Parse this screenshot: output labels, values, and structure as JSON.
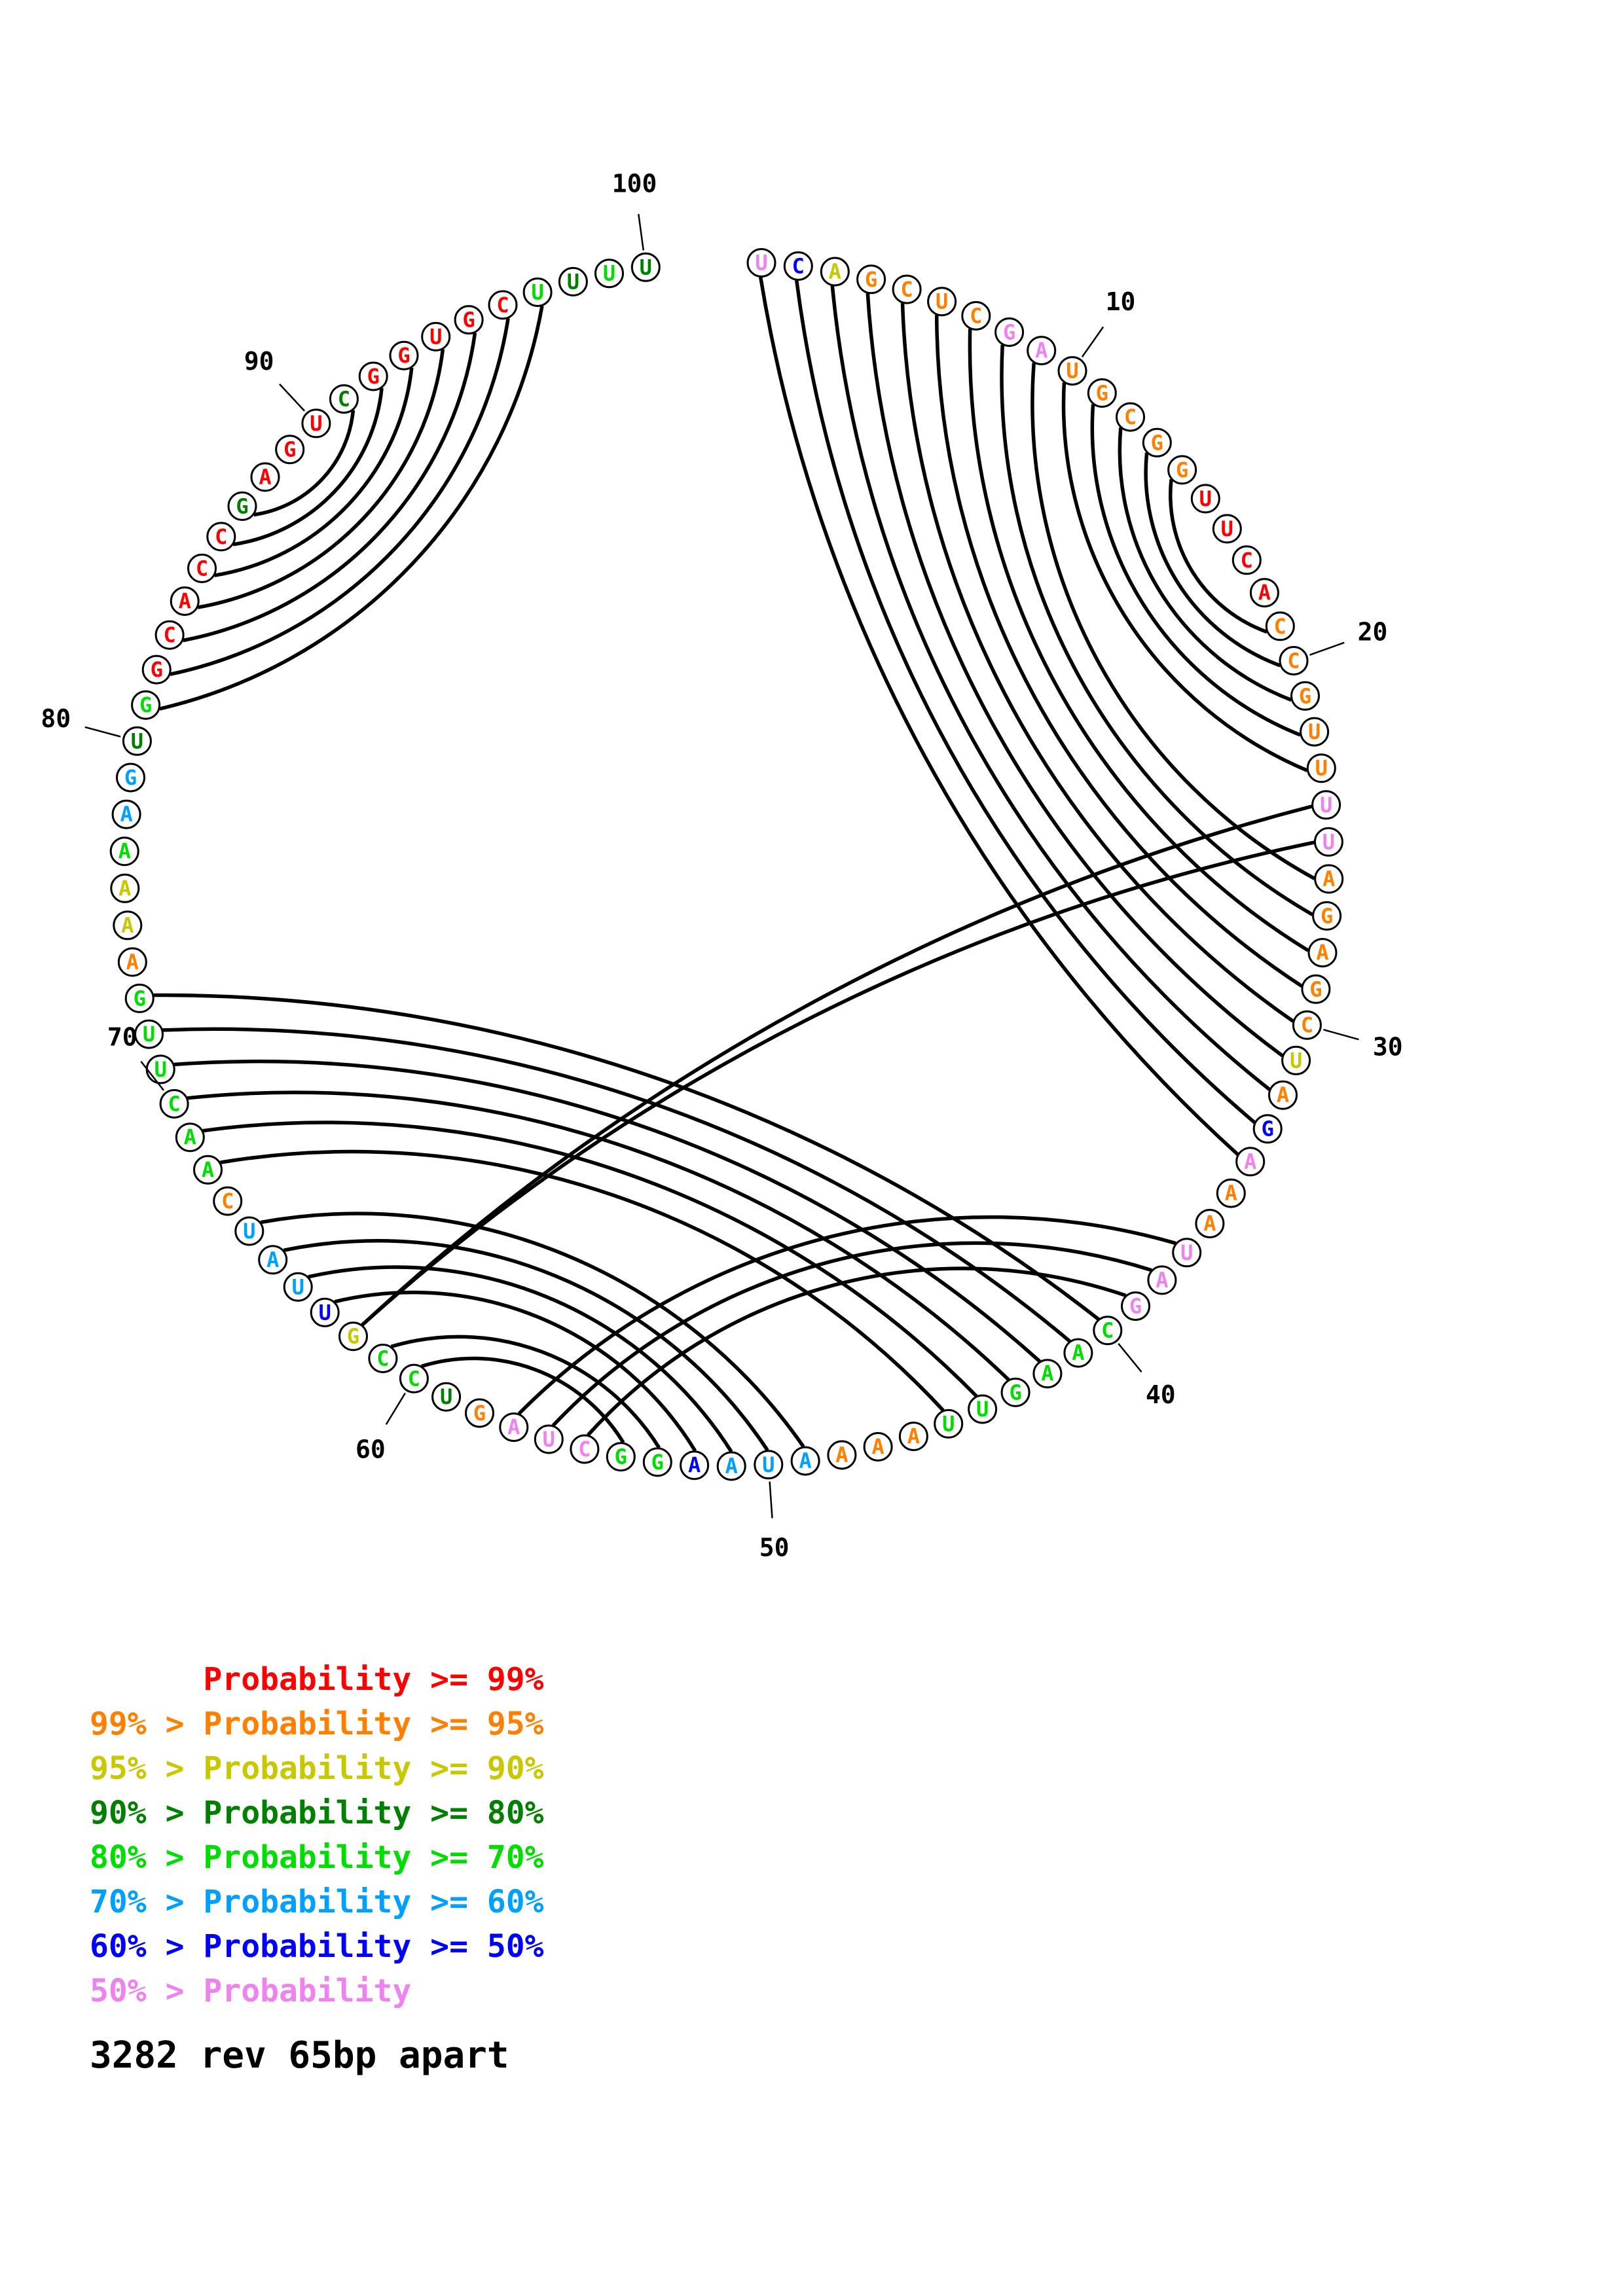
{
  "figure": {
    "caption": "3282 rev 65bp apart",
    "colors": {
      "p99": "#ff0000",
      "p95": "#ff8000",
      "p90": "#c8c800",
      "p80": "#008000",
      "p70": "#00dd00",
      "p60": "#00a0ff",
      "p50": "#0000ff",
      "lt50": "#ee82ee"
    },
    "legend": [
      {
        "text": "      Probability >= 99%",
        "class": "p99"
      },
      {
        "text": "99% > Probability >= 95%",
        "class": "p95"
      },
      {
        "text": "95% > Probability >= 90%",
        "class": "p90"
      },
      {
        "text": "90% > Probability >= 80%",
        "class": "p80"
      },
      {
        "text": "80% > Probability >= 70%",
        "class": "p70"
      },
      {
        "text": "70% > Probability >= 60%",
        "class": "p60"
      },
      {
        "text": "60% > Probability >= 50%",
        "class": "p50"
      },
      {
        "text": "50% > Probability",
        "class": "lt50"
      }
    ],
    "sequence": [
      [
        "U",
        "lt50"
      ],
      [
        "C",
        "p50"
      ],
      [
        "A",
        "p90"
      ],
      [
        "G",
        "p95"
      ],
      [
        "C",
        "p95"
      ],
      [
        "U",
        "p95"
      ],
      [
        "C",
        "p95"
      ],
      [
        "G",
        "lt50"
      ],
      [
        "A",
        "lt50"
      ],
      [
        "U",
        "p95"
      ],
      [
        "G",
        "p95"
      ],
      [
        "C",
        "p95"
      ],
      [
        "G",
        "p95"
      ],
      [
        "G",
        "p95"
      ],
      [
        "U",
        "p99"
      ],
      [
        "U",
        "p99"
      ],
      [
        "C",
        "p99"
      ],
      [
        "A",
        "p99"
      ],
      [
        "C",
        "p95"
      ],
      [
        "C",
        "p95"
      ],
      [
        "G",
        "p95"
      ],
      [
        "U",
        "p95"
      ],
      [
        "U",
        "p95"
      ],
      [
        "U",
        "lt50"
      ],
      [
        "U",
        "lt50"
      ],
      [
        "A",
        "p95"
      ],
      [
        "G",
        "p95"
      ],
      [
        "A",
        "p95"
      ],
      [
        "G",
        "p95"
      ],
      [
        "C",
        "p95"
      ],
      [
        "U",
        "p90"
      ],
      [
        "A",
        "p95"
      ],
      [
        "G",
        "p50"
      ],
      [
        "A",
        "lt50"
      ],
      [
        "A",
        "p95"
      ],
      [
        "A",
        "p95"
      ],
      [
        "U",
        "lt50"
      ],
      [
        "A",
        "lt50"
      ],
      [
        "G",
        "lt50"
      ],
      [
        "C",
        "p70"
      ],
      [
        "A",
        "p70"
      ],
      [
        "A",
        "p70"
      ],
      [
        "G",
        "p70"
      ],
      [
        "U",
        "p70"
      ],
      [
        "U",
        "p70"
      ],
      [
        "A",
        "p95"
      ],
      [
        "A",
        "p95"
      ],
      [
        "A",
        "p95"
      ],
      [
        "A",
        "p60"
      ],
      [
        "U",
        "p60"
      ],
      [
        "A",
        "p60"
      ],
      [
        "A",
        "p50"
      ],
      [
        "G",
        "p70"
      ],
      [
        "G",
        "p70"
      ],
      [
        "C",
        "lt50"
      ],
      [
        "U",
        "lt50"
      ],
      [
        "A",
        "lt50"
      ],
      [
        "G",
        "p95"
      ],
      [
        "U",
        "p80"
      ],
      [
        "C",
        "p70"
      ],
      [
        "C",
        "p70"
      ],
      [
        "G",
        "p90"
      ],
      [
        "U",
        "p50"
      ],
      [
        "U",
        "p60"
      ],
      [
        "A",
        "p60"
      ],
      [
        "U",
        "p60"
      ],
      [
        "C",
        "p95"
      ],
      [
        "A",
        "p70"
      ],
      [
        "A",
        "p70"
      ],
      [
        "C",
        "p70"
      ],
      [
        "U",
        "p70"
      ],
      [
        "U",
        "p70"
      ],
      [
        "G",
        "p70"
      ],
      [
        "A",
        "p95"
      ],
      [
        "A",
        "p90"
      ],
      [
        "A",
        "p90"
      ],
      [
        "A",
        "p70"
      ],
      [
        "A",
        "p60"
      ],
      [
        "G",
        "p60"
      ],
      [
        "U",
        "p80"
      ],
      [
        "G",
        "p70"
      ],
      [
        "G",
        "p99"
      ],
      [
        "C",
        "p99"
      ],
      [
        "A",
        "p99"
      ],
      [
        "C",
        "p99"
      ],
      [
        "C",
        "p99"
      ],
      [
        "G",
        "p80"
      ],
      [
        "A",
        "p99"
      ],
      [
        "G",
        "p99"
      ],
      [
        "U",
        "p99"
      ],
      [
        "C",
        "p80"
      ],
      [
        "G",
        "p99"
      ],
      [
        "G",
        "p99"
      ],
      [
        "U",
        "p99"
      ],
      [
        "G",
        "p99"
      ],
      [
        "C",
        "p99"
      ],
      [
        "U",
        "p70"
      ],
      [
        "U",
        "p80"
      ],
      [
        "U",
        "p70"
      ],
      [
        "U",
        "p80"
      ]
    ],
    "pairs": [
      [
        1,
        34
      ],
      [
        2,
        33
      ],
      [
        3,
        32
      ],
      [
        4,
        31
      ],
      [
        5,
        30
      ],
      [
        6,
        29
      ],
      [
        7,
        28
      ],
      [
        8,
        27
      ],
      [
        9,
        26
      ],
      [
        10,
        23
      ],
      [
        11,
        22
      ],
      [
        12,
        21
      ],
      [
        13,
        20
      ],
      [
        14,
        19
      ],
      [
        24,
        62
      ],
      [
        25,
        62
      ],
      [
        37,
        57
      ],
      [
        38,
        56
      ],
      [
        39,
        55
      ],
      [
        40,
        73
      ],
      [
        41,
        72
      ],
      [
        42,
        71
      ],
      [
        43,
        70
      ],
      [
        44,
        69
      ],
      [
        45,
        68
      ],
      [
        49,
        66
      ],
      [
        50,
        65
      ],
      [
        51,
        64
      ],
      [
        52,
        63
      ],
      [
        53,
        61
      ],
      [
        54,
        60
      ],
      [
        81,
        97
      ],
      [
        82,
        96
      ],
      [
        83,
        95
      ],
      [
        84,
        94
      ],
      [
        85,
        93
      ],
      [
        86,
        92
      ],
      [
        87,
        91
      ]
    ],
    "position_labels": [
      {
        "n": 10,
        "label": "10"
      },
      {
        "n": 20,
        "label": "20"
      },
      {
        "n": 30,
        "label": "30"
      },
      {
        "n": 40,
        "label": "40"
      },
      {
        "n": 50,
        "label": "50"
      },
      {
        "n": 60,
        "label": "60"
      },
      {
        "n": 70,
        "label": "70"
      },
      {
        "n": 80,
        "label": "80"
      },
      {
        "n": 90,
        "label": "90"
      },
      {
        "n": 100,
        "label": "100"
      }
    ],
    "label_dirs": {
      "70": [
        -0.62,
        -0.79
      ],
      "80": [
        -0.97,
        -0.26
      ]
    }
  }
}
